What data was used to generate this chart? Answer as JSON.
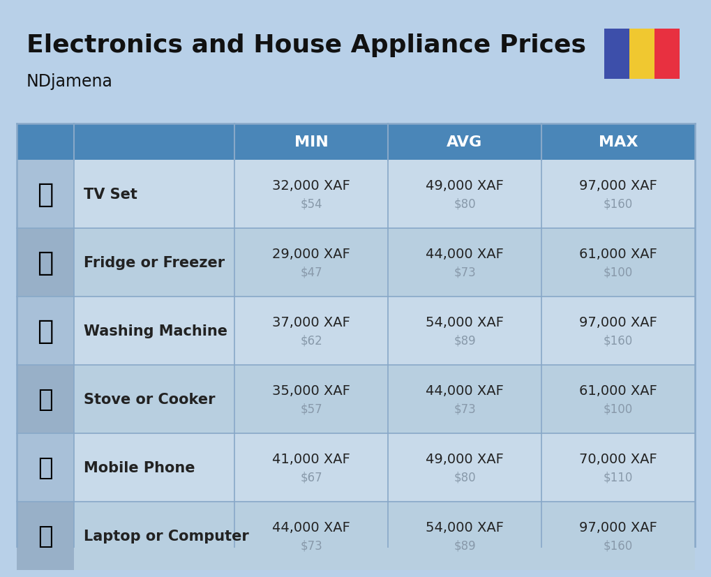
{
  "title": "Electronics and House Appliance Prices",
  "subtitle": "NDjamena",
  "background_color": "#b8d0e8",
  "header_bg_color": "#4a86b8",
  "header_text_color": "#ffffff",
  "row_bg_color_light": "#c8daea",
  "row_bg_color_dark": "#b8cfe0",
  "icon_col_bg_light": "#a8c0d8",
  "icon_col_bg_dark": "#98b0c8",
  "cell_line_color": "#88a8c8",
  "title_color": "#111111",
  "subtitle_color": "#111111",
  "main_price_color": "#222222",
  "usd_price_color": "#8899aa",
  "columns": [
    "MIN",
    "AVG",
    "MAX"
  ],
  "rows": [
    {
      "name": "TV Set",
      "min_xaf": "32,000 XAF",
      "min_usd": "$54",
      "avg_xaf": "49,000 XAF",
      "avg_usd": "$80",
      "max_xaf": "97,000 XAF",
      "max_usd": "$160"
    },
    {
      "name": "Fridge or Freezer",
      "min_xaf": "29,000 XAF",
      "min_usd": "$47",
      "avg_xaf": "44,000 XAF",
      "avg_usd": "$73",
      "max_xaf": "61,000 XAF",
      "max_usd": "$100"
    },
    {
      "name": "Washing Machine",
      "min_xaf": "37,000 XAF",
      "min_usd": "$62",
      "avg_xaf": "54,000 XAF",
      "avg_usd": "$89",
      "max_xaf": "97,000 XAF",
      "max_usd": "$160"
    },
    {
      "name": "Stove or Cooker",
      "min_xaf": "35,000 XAF",
      "min_usd": "$57",
      "avg_xaf": "44,000 XAF",
      "avg_usd": "$73",
      "max_xaf": "61,000 XAF",
      "max_usd": "$100"
    },
    {
      "name": "Mobile Phone",
      "min_xaf": "41,000 XAF",
      "min_usd": "$67",
      "avg_xaf": "49,000 XAF",
      "avg_usd": "$80",
      "max_xaf": "70,000 XAF",
      "max_usd": "$110"
    },
    {
      "name": "Laptop or Computer",
      "min_xaf": "44,000 XAF",
      "min_usd": "$73",
      "avg_xaf": "54,000 XAF",
      "avg_usd": "$89",
      "max_xaf": "97,000 XAF",
      "max_usd": "$160"
    }
  ],
  "flag_colors": [
    "#3d4faa",
    "#f0c830",
    "#e83040"
  ],
  "title_fontsize": 26,
  "subtitle_fontsize": 17,
  "header_fontsize": 16,
  "name_fontsize": 15,
  "price_fontsize": 14,
  "usd_fontsize": 12
}
